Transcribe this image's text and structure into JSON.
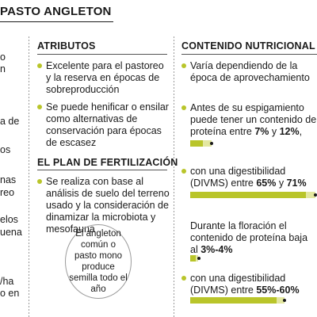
{
  "header": {
    "title": "PASTO ANGLETON"
  },
  "left_fragments": [
    "o",
    "n",
    "a de",
    "os",
    "nas",
    "reo",
    "elos",
    "uena",
    "/ha",
    "o en"
  ],
  "attributes": {
    "heading": "ATRIBUTOS",
    "items": [
      "Excelente para el pastoreo y la reserva en épocas de sobreproducción",
      "Se puede henificar o ensilar como alternativas de conservación para épocas de escasez"
    ]
  },
  "fertilization": {
    "heading": "EL PLAN DE FERTILIZACIÓN",
    "items": [
      "Se realiza con base al análisis de suelo del terreno usado y la consideración de dinamizar la microbiota y mesofauna"
    ]
  },
  "callout": "El angleton común o pasto mono produce semilla todo el año",
  "nutrition": {
    "heading": "CONTENIDO NUTRICIONAL",
    "intro": "Varía dependiendo de la época de aprovechamiento",
    "protein_before": {
      "lead": "Antes de su espigamiento puede tener un contenido de proteína entre ",
      "low": "7%",
      "mid": " y ",
      "high": "12%",
      "tail": ",",
      "range_percent": [
        7,
        12
      ]
    },
    "digest_before": {
      "lead": "con una digestibilidad (DIVMS) entre ",
      "low": "65%",
      "mid": " y ",
      "high": "71%",
      "range_percent": [
        65,
        71
      ]
    },
    "protein_flowering": {
      "lead": "Durante la floración el contenido de proteína baja al ",
      "range": "3%-4%",
      "range_percent": [
        3,
        4
      ]
    },
    "digest_flowering": {
      "lead": "con una digestibilidad (DIVMS) entre ",
      "range": "55%-60%",
      "range_percent": [
        55,
        60
      ]
    }
  },
  "colors": {
    "accent": "#b9c52a",
    "accent_light": "#e3e7a0",
    "text": "#1a1a1a"
  }
}
